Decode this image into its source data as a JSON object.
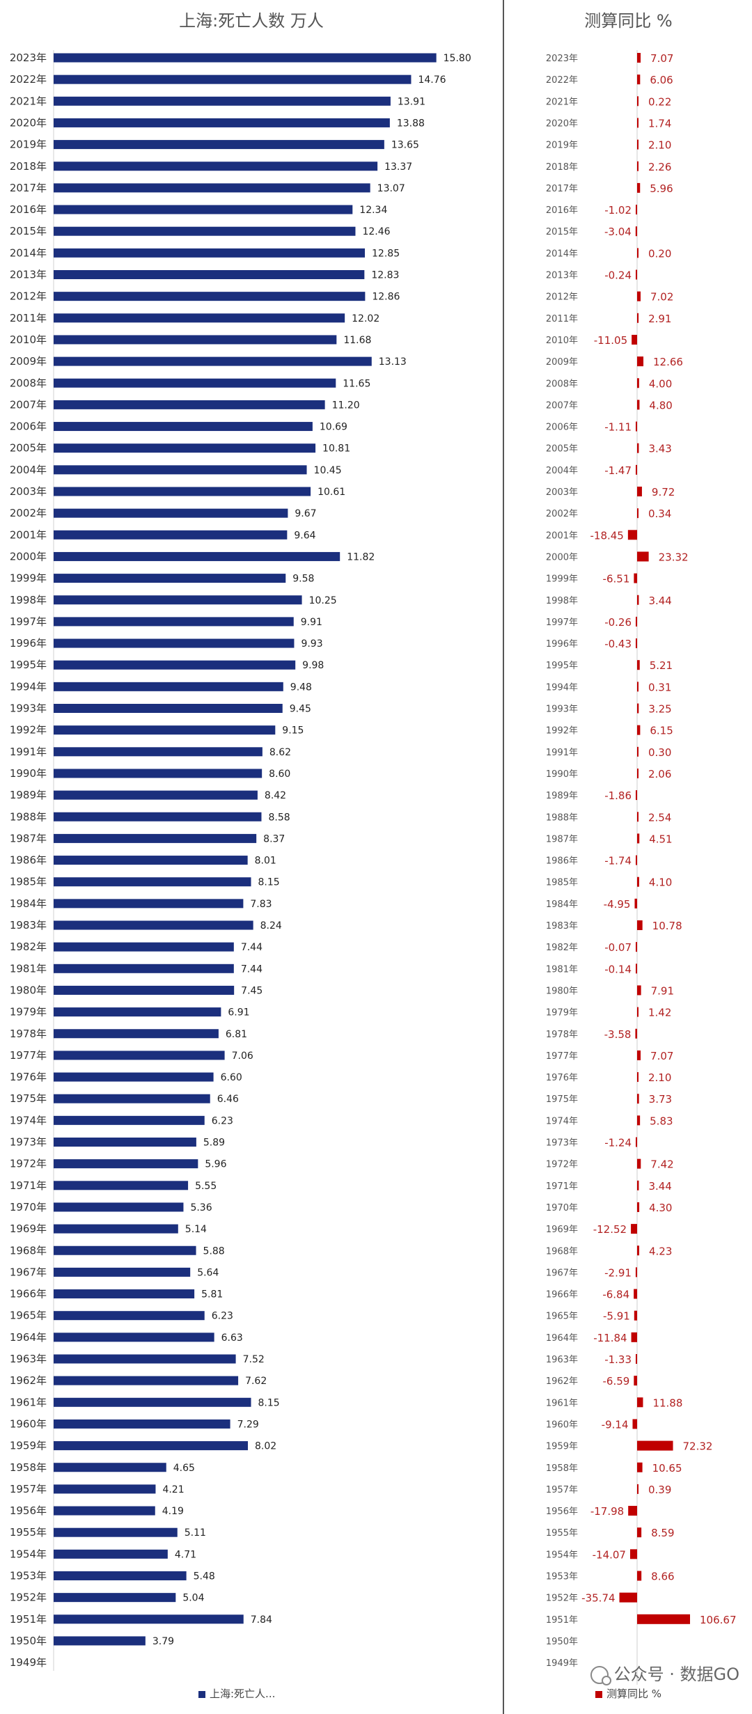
{
  "chart_data": [
    {
      "type": "bar",
      "orientation": "horizontal",
      "title": "上海:死亡人数 万人",
      "legend_label": "上海:死亡人...",
      "color": "#1b2f7d",
      "categories": [
        "2023年",
        "2022年",
        "2021年",
        "2020年",
        "2019年",
        "2018年",
        "2017年",
        "2016年",
        "2015年",
        "2014年",
        "2013年",
        "2012年",
        "2011年",
        "2010年",
        "2009年",
        "2008年",
        "2007年",
        "2006年",
        "2005年",
        "2004年",
        "2003年",
        "2002年",
        "2001年",
        "2000年",
        "1999年",
        "1998年",
        "1997年",
        "1996年",
        "1995年",
        "1994年",
        "1993年",
        "1992年",
        "1991年",
        "1990年",
        "1989年",
        "1988年",
        "1987年",
        "1986年",
        "1985年",
        "1984年",
        "1983年",
        "1982年",
        "1981年",
        "1980年",
        "1979年",
        "1978年",
        "1977年",
        "1976年",
        "1975年",
        "1974年",
        "1973年",
        "1972年",
        "1971年",
        "1970年",
        "1969年",
        "1968年",
        "1967年",
        "1966年",
        "1965年",
        "1964年",
        "1963年",
        "1962年",
        "1961年",
        "1960年",
        "1959年",
        "1958年",
        "1957年",
        "1956年",
        "1955年",
        "1954年",
        "1953年",
        "1952年",
        "1951年",
        "1950年",
        "1949年"
      ],
      "values": [
        15.8,
        14.76,
        13.91,
        13.88,
        13.65,
        13.37,
        13.07,
        12.34,
        12.46,
        12.85,
        12.83,
        12.86,
        12.02,
        11.68,
        13.13,
        11.65,
        11.2,
        10.69,
        10.81,
        10.45,
        10.61,
        9.67,
        9.64,
        11.82,
        9.58,
        10.25,
        9.91,
        9.93,
        9.98,
        9.48,
        9.45,
        9.15,
        8.62,
        8.6,
        8.42,
        8.58,
        8.37,
        8.01,
        8.15,
        7.83,
        8.24,
        7.44,
        7.44,
        7.45,
        6.91,
        6.81,
        7.06,
        6.6,
        6.46,
        6.23,
        5.89,
        5.96,
        5.55,
        5.36,
        5.14,
        5.88,
        5.64,
        5.81,
        6.23,
        6.63,
        7.52,
        7.62,
        8.15,
        7.29,
        8.02,
        4.65,
        4.21,
        4.19,
        5.11,
        4.71,
        5.48,
        5.04,
        7.84,
        3.79,
        null
      ],
      "labels": [
        "15.80",
        "14.76",
        "13.91",
        "13.88",
        "13.65",
        "13.37",
        "13.07",
        "12.34",
        "12.46",
        "12.85",
        "12.83",
        "12.86",
        "12.02",
        "11.68",
        "13.13",
        "11.65",
        "11.20",
        "10.69",
        "10.81",
        "10.45",
        "10.61",
        "9.67",
        "9.64",
        "11.82",
        "9.58",
        "10.25",
        "9.91",
        "9.93",
        "9.98",
        "9.48",
        "9.45",
        "9.15",
        "8.62",
        "8.60",
        "8.42",
        "8.58",
        "8.37",
        "8.01",
        "8.15",
        "7.83",
        "8.24",
        "7.44",
        "7.44",
        "7.45",
        "6.91",
        "6.81",
        "7.06",
        "6.60",
        "6.46",
        "6.23",
        "5.89",
        "5.96",
        "5.55",
        "5.36",
        "5.14",
        "5.88",
        "5.64",
        "5.81",
        "6.23",
        "6.63",
        "7.52",
        "7.62",
        "8.15",
        "7.29",
        "8.02",
        "4.65",
        "4.21",
        "4.19",
        "5.11",
        "4.71",
        "5.48",
        "5.04",
        "7.84",
        "3.79",
        ""
      ],
      "xlim": [
        0,
        16.5
      ]
    },
    {
      "type": "bar",
      "orientation": "horizontal",
      "title": "测算同比 %",
      "legend_label": "测算同比 %",
      "color": "#c00000",
      "label_color": "#b22222",
      "categories": [
        "2023年",
        "2022年",
        "2021年",
        "2020年",
        "2019年",
        "2018年",
        "2017年",
        "2016年",
        "2015年",
        "2014年",
        "2013年",
        "2012年",
        "2011年",
        "2010年",
        "2009年",
        "2008年",
        "2007年",
        "2006年",
        "2005年",
        "2004年",
        "2003年",
        "2002年",
        "2001年",
        "2000年",
        "1999年",
        "1998年",
        "1997年",
        "1996年",
        "1995年",
        "1994年",
        "1993年",
        "1992年",
        "1991年",
        "1990年",
        "1989年",
        "1988年",
        "1987年",
        "1986年",
        "1985年",
        "1984年",
        "1983年",
        "1982年",
        "1981年",
        "1980年",
        "1979年",
        "1978年",
        "1977年",
        "1976年",
        "1975年",
        "1974年",
        "1973年",
        "1972年",
        "1971年",
        "1970年",
        "1969年",
        "1968年",
        "1967年",
        "1966年",
        "1965年",
        "1964年",
        "1963年",
        "1962年",
        "1961年",
        "1960年",
        "1959年",
        "1958年",
        "1957年",
        "1956年",
        "1955年",
        "1954年",
        "1953年",
        "1952年",
        "1951年",
        "1950年",
        "1949年"
      ],
      "values": [
        7.07,
        6.06,
        0.22,
        1.74,
        2.1,
        2.26,
        5.96,
        -1.02,
        -3.04,
        0.2,
        -0.24,
        7.02,
        2.91,
        -11.05,
        12.66,
        4.0,
        4.8,
        -1.11,
        3.43,
        -1.47,
        9.72,
        0.34,
        -18.45,
        23.32,
        -6.51,
        3.44,
        -0.26,
        -0.43,
        5.21,
        0.31,
        3.25,
        6.15,
        0.3,
        2.06,
        -1.86,
        2.54,
        4.51,
        -1.74,
        4.1,
        -4.95,
        10.78,
        -0.07,
        -0.14,
        7.91,
        1.42,
        -3.58,
        7.07,
        2.1,
        3.73,
        5.83,
        -1.24,
        7.42,
        3.44,
        4.3,
        -12.52,
        4.23,
        -2.91,
        -6.84,
        -5.91,
        -11.84,
        -1.33,
        -6.59,
        11.88,
        -9.14,
        72.32,
        10.65,
        0.39,
        -17.98,
        8.59,
        -14.07,
        8.66,
        -35.74,
        106.67,
        null,
        null
      ],
      "labels": [
        "7.07",
        "6.06",
        "0.22",
        "1.74",
        "2.10",
        "2.26",
        "5.96",
        "-1.02",
        "-3.04",
        "0.20",
        "-0.24",
        "7.02",
        "2.91",
        "-11.05",
        "12.66",
        "4.00",
        "4.80",
        "-1.11",
        "3.43",
        "-1.47",
        "9.72",
        "0.34",
        "-18.45",
        "23.32",
        "-6.51",
        "3.44",
        "-0.26",
        "-0.43",
        "5.21",
        "0.31",
        "3.25",
        "6.15",
        "0.30",
        "2.06",
        "-1.86",
        "2.54",
        "4.51",
        "-1.74",
        "4.10",
        "-4.95",
        "10.78",
        "-0.07",
        "-0.14",
        "7.91",
        "1.42",
        "-3.58",
        "7.07",
        "2.10",
        "3.73",
        "5.83",
        "-1.24",
        "7.42",
        "3.44",
        "4.30",
        "-12.52",
        "4.23",
        "-2.91",
        "-6.84",
        "-5.91",
        "-11.84",
        "-1.33",
        "-6.59",
        "11.88",
        "-9.14",
        "72.32",
        "10.65",
        "0.39",
        "-17.98",
        "8.59",
        "-14.07",
        "8.66",
        "-35.74",
        "106.67",
        "",
        ""
      ]
    }
  ],
  "watermark": {
    "text": "公众号 · 数据GO",
    "icon": "wechat-icon"
  }
}
